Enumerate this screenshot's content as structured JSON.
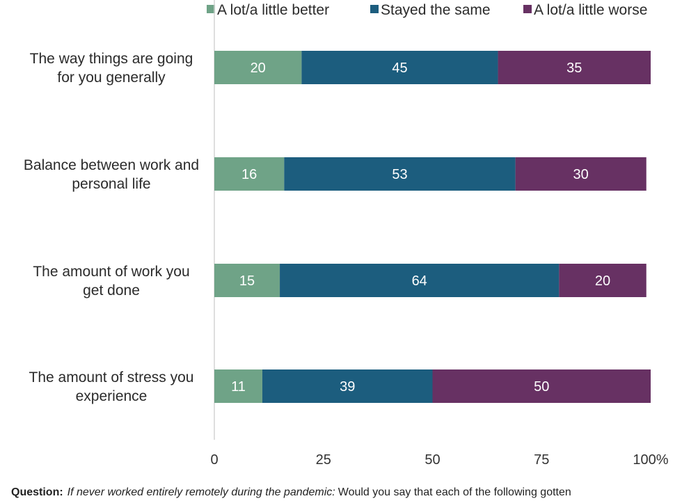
{
  "chart_data": {
    "type": "bar",
    "orientation": "horizontal",
    "stacked": true,
    "title": "",
    "xlabel": "",
    "ylabel": "",
    "xlim": [
      0,
      100
    ],
    "x_ticks": [
      "0",
      "25",
      "50",
      "75",
      "100%"
    ],
    "x_tick_values": [
      0,
      25,
      50,
      75,
      100
    ],
    "grid": false,
    "legend_position": "top",
    "categories": [
      "The way things are going for you generally",
      "Balance between work and personal life",
      "The amount of work you get done",
      "The amount of stress you experience"
    ],
    "category_lines": [
      [
        "The way things are going",
        "for you generally"
      ],
      [
        "Balance between work and",
        "personal life"
      ],
      [
        "The amount of work you",
        "get done"
      ],
      [
        "The amount of stress you",
        "experience"
      ]
    ],
    "series": [
      {
        "name": "A lot/a little better",
        "color": "#6fa387",
        "values": [
          20,
          16,
          15,
          11
        ]
      },
      {
        "name": "Stayed the same",
        "color": "#1c5d7e",
        "values": [
          45,
          53,
          64,
          39
        ]
      },
      {
        "name": "A lot/a little worse",
        "color": "#673163",
        "values": [
          35,
          30,
          20,
          50
        ]
      }
    ]
  },
  "footer": {
    "label": "Question:",
    "condition": "If never worked entirely remotely during the pandemic:",
    "text": "Would you say that each of the following gotten"
  }
}
